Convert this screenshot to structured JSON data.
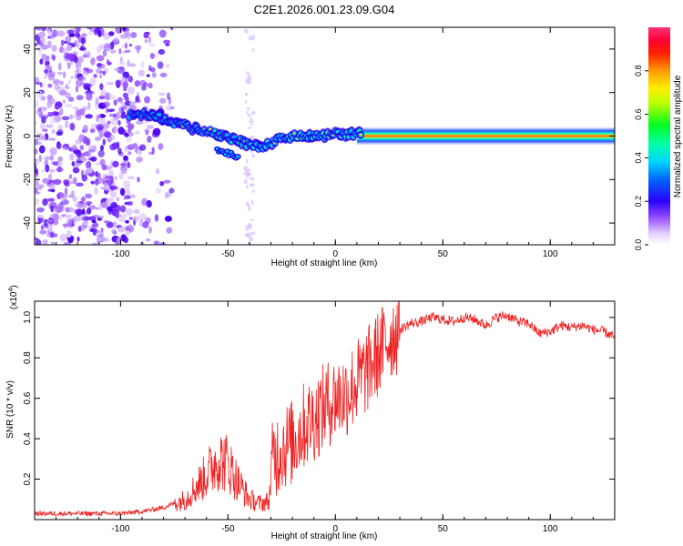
{
  "title": "C2E1.2026.001.23.09.G04",
  "chart_data": [
    {
      "type": "heatmap",
      "name": "spectrogram",
      "xlabel": "Height of straight line (km)",
      "ylabel": "Frequency (Hz)",
      "xlim": [
        -140,
        130
      ],
      "ylim": [
        -50,
        50
      ],
      "xticks": [
        -100,
        -50,
        0,
        50,
        100
      ],
      "yticks": [
        -40,
        -20,
        0,
        20,
        40
      ],
      "colorbar": {
        "label": "Normalized spectral amplitude",
        "range": [
          0,
          1
        ],
        "ticks": [
          "0.0",
          "0.2",
          "0.4",
          "0.6",
          "0.8"
        ],
        "colors": [
          "#f4e8ff",
          "#c8a8ff",
          "#7a2cff",
          "#3300ff",
          "#0044ff",
          "#00aaff",
          "#00ffd0",
          "#00ff40",
          "#99ff00",
          "#ffff00",
          "#ffaa00",
          "#ff4000",
          "#ff0000",
          "#ff2266",
          "#ff4488"
        ]
      },
      "noise_region_x": [
        -140,
        -82
      ],
      "center_track": {
        "x": [
          -95,
          -90,
          -85,
          -80,
          -75,
          -70,
          -65,
          -60,
          -55,
          -50,
          -45,
          -40,
          -35,
          -30,
          -25,
          -20,
          -15,
          -10,
          -5,
          0,
          5,
          10,
          130
        ],
        "freq": [
          10,
          10,
          9,
          8,
          6,
          5,
          3,
          2,
          1,
          -1,
          -2,
          -4,
          -5,
          -3,
          -1,
          0,
          0,
          0,
          0,
          1,
          1,
          1,
          0
        ]
      }
    },
    {
      "type": "line",
      "name": "snr",
      "xlabel": "Height of straight line (km)",
      "ylabel": "SNR (10 * v/v)",
      "yunit_label": "(x10",
      "yunit_exp": "4",
      "yunit_close": ")",
      "xlim": [
        -140,
        130
      ],
      "ylim": [
        0,
        1.08
      ],
      "xticks": [
        -100,
        -50,
        0,
        50,
        100
      ],
      "yticks": [
        0.2,
        0.4,
        0.6,
        0.8,
        1.0
      ],
      "ytick_labels": [
        "0.2",
        "0.4",
        "0.6",
        "0.8",
        "1.0"
      ],
      "series_color": "#ee2222",
      "envelope": {
        "x": [
          -140,
          -100,
          -90,
          -80,
          -70,
          -65,
          -60,
          -55,
          -50,
          -45,
          -40,
          -35,
          -31,
          -29,
          -25,
          -20,
          -15,
          -10,
          -5,
          0,
          5,
          10,
          15,
          20,
          25,
          30,
          35,
          40,
          45,
          50,
          55,
          60,
          65,
          70,
          75,
          80,
          85,
          90,
          95,
          100,
          105,
          110,
          115,
          120,
          125,
          130
        ],
        "y": [
          0.03,
          0.03,
          0.04,
          0.06,
          0.1,
          0.16,
          0.22,
          0.3,
          0.28,
          0.18,
          0.1,
          0.08,
          0.09,
          0.3,
          0.36,
          0.38,
          0.46,
          0.5,
          0.56,
          0.6,
          0.62,
          0.68,
          0.74,
          0.82,
          0.9,
          0.94,
          0.97,
          0.98,
          1.0,
          0.99,
          0.98,
          1.0,
          0.99,
          0.96,
          1.0,
          1.01,
          0.98,
          0.97,
          0.92,
          0.93,
          0.96,
          0.95,
          0.96,
          0.94,
          0.93,
          0.9
        ]
      }
    }
  ]
}
